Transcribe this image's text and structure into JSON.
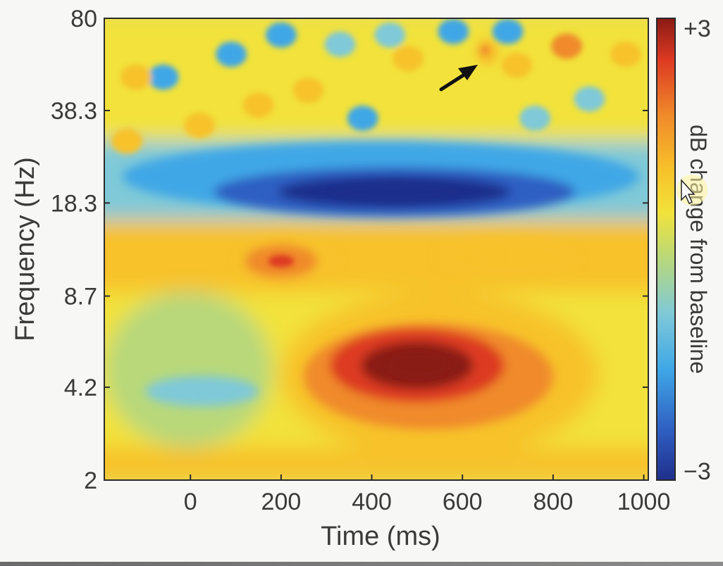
{
  "chart_data": {
    "type": "heatmap",
    "title": "",
    "xlabel": "Time (ms)",
    "ylabel": "Frequency (Hz)",
    "x_ticks": [
      "0",
      "200",
      "400",
      "600",
      "800",
      "1000"
    ],
    "x_tick_values": [
      0,
      200,
      400,
      600,
      800,
      1000
    ],
    "xlim": [
      -190,
      1010
    ],
    "y_scale": "log",
    "y_ticks": [
      "80",
      "38.3",
      "18.3",
      "8.7",
      "4.2",
      "2"
    ],
    "y_tick_values": [
      80,
      38.3,
      18.3,
      8.7,
      4.2,
      2
    ],
    "ylim": [
      2,
      80
    ],
    "colorbar": {
      "label": "dB change from baseline",
      "max_label": "+3",
      "min_label": "−3",
      "range": [
        -3,
        3
      ],
      "colormap": [
        "#1f2f8c",
        "#2f5fc2",
        "#3fa7e6",
        "#7fc9d8",
        "#b8d87a",
        "#f2e23a",
        "#f7c22a",
        "#f08a2a",
        "#dd3a22",
        "#8a1a14"
      ]
    },
    "regions": [
      {
        "feature": "theta power increase",
        "time_ms": [
          250,
          800
        ],
        "freq_hz": [
          3,
          7
        ],
        "peak_time_ms": 500,
        "peak_freq_hz": 5,
        "peak_db": 3
      },
      {
        "feature": "alpha power increase (early)",
        "time_ms": [
          100,
          330
        ],
        "freq_hz": [
          9.5,
          14
        ],
        "peak_time_ms": 200,
        "peak_freq_hz": 11.5,
        "peak_db": 2.2
      },
      {
        "feature": "alpha power increase (late)",
        "time_ms": [
          540,
          860
        ],
        "freq_hz": [
          10,
          14
        ],
        "peak_time_ms": 650,
        "peak_freq_hz": 12,
        "peak_db": 1.3
      },
      {
        "feature": "beta power decrease",
        "time_ms": [
          -150,
          990
        ],
        "freq_hz": [
          17,
          30
        ],
        "peak_time_ms": 450,
        "peak_freq_hz": 20,
        "peak_db": -3
      },
      {
        "feature": "low-frequency decrease",
        "time_ms": [
          -100,
          150
        ],
        "freq_hz": [
          3.6,
          4.6
        ],
        "peak_time_ms": 60,
        "peak_freq_hz": 4,
        "peak_db": -1.3
      },
      {
        "feature": "high-frequency burst (arrow)",
        "time_ms": [
          630,
          680
        ],
        "freq_hz": [
          55,
          68
        ],
        "peak_time_ms": 650,
        "peak_freq_hz": 62,
        "peak_db": 1.5
      }
    ],
    "annotations": [
      "arrow pointing to high-frequency burst near 650 ms, ~62 Hz"
    ],
    "grid": false,
    "legend": "colorbar-right"
  }
}
